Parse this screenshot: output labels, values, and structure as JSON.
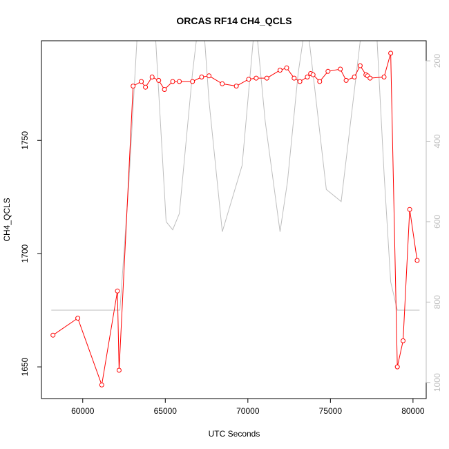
{
  "chart_data": {
    "type": "line",
    "title": "ORCAS RF14 CH4_QCLS",
    "xlabel": "UTC Seconds",
    "ylabel": "CH4_QCLS",
    "xlim": [
      57500,
      80800
    ],
    "ylim": [
      1636,
      1794
    ],
    "x_ticks": [
      60000,
      65000,
      70000,
      75000,
      80000
    ],
    "y_ticks": [
      1650,
      1700,
      1750
    ],
    "y2lim": [
      1040,
      150
    ],
    "y2_ticks": [
      200,
      400,
      600,
      800,
      1000
    ],
    "grid": false,
    "legend": "none",
    "series": [
      {
        "style": "line-points",
        "color": "#ff0000",
        "axis": "left",
        "points": [
          [
            58200,
            1664
          ],
          [
            59700,
            1671.5
          ],
          [
            61150,
            1642
          ],
          [
            62100,
            1683.5
          ],
          [
            62200,
            1648.5
          ],
          [
            63050,
            1774
          ],
          [
            63550,
            1776
          ],
          [
            63800,
            1773.5
          ],
          [
            64200,
            1778
          ],
          [
            64600,
            1776.5
          ],
          [
            64950,
            1772.5
          ],
          [
            65450,
            1776
          ],
          [
            65850,
            1776
          ],
          [
            66650,
            1776
          ],
          [
            67200,
            1778
          ],
          [
            67650,
            1778.5
          ],
          [
            68450,
            1775
          ],
          [
            69300,
            1774
          ],
          [
            70050,
            1777
          ],
          [
            70500,
            1777.5
          ],
          [
            71150,
            1777.5
          ],
          [
            71950,
            1781
          ],
          [
            72350,
            1782
          ],
          [
            72800,
            1777.5
          ],
          [
            73150,
            1776
          ],
          [
            73600,
            1778
          ],
          [
            73800,
            1779.5
          ],
          [
            73950,
            1779
          ],
          [
            74350,
            1776
          ],
          [
            74850,
            1780.5
          ],
          [
            75600,
            1781.5
          ],
          [
            75950,
            1776.5
          ],
          [
            76450,
            1778
          ],
          [
            76800,
            1783
          ],
          [
            77150,
            1779
          ],
          [
            77250,
            1778.5
          ],
          [
            77400,
            1777.5
          ],
          [
            78250,
            1778
          ],
          [
            78650,
            1788.5
          ],
          [
            79050,
            1650
          ],
          [
            79400,
            1661.5
          ],
          [
            79800,
            1719.5
          ],
          [
            80250,
            1697
          ]
        ]
      },
      {
        "style": "line",
        "color": "#bebebe",
        "axis": "right",
        "points": [
          [
            58100,
            820
          ],
          [
            62250,
            820
          ],
          [
            62800,
            500
          ],
          [
            63350,
            100
          ],
          [
            64350,
            100
          ],
          [
            65050,
            600
          ],
          [
            65450,
            620
          ],
          [
            65850,
            580
          ],
          [
            66650,
            230
          ],
          [
            67050,
            90
          ],
          [
            67300,
            100
          ],
          [
            67650,
            300
          ],
          [
            68450,
            625
          ],
          [
            69650,
            460
          ],
          [
            70450,
            90
          ],
          [
            71050,
            350
          ],
          [
            71950,
            625
          ],
          [
            72400,
            500
          ],
          [
            73050,
            230
          ],
          [
            73550,
            90
          ],
          [
            74750,
            520
          ],
          [
            75650,
            550
          ],
          [
            76950,
            100
          ],
          [
            77750,
            90
          ],
          [
            78250,
            480
          ],
          [
            78650,
            750
          ],
          [
            79050,
            820
          ],
          [
            80400,
            820
          ]
        ]
      }
    ]
  }
}
